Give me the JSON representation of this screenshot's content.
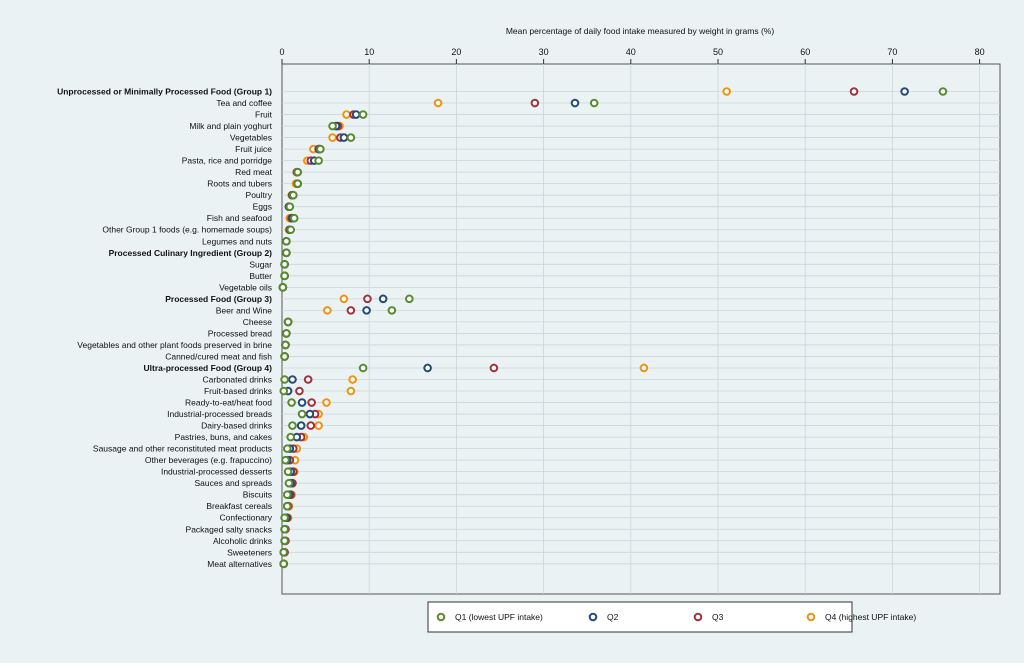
{
  "chart_data": {
    "type": "scatter",
    "xlabel": "Mean percentage of daily food intake measured by weight in grams (%)",
    "xlim": [
      0,
      82
    ],
    "xticks": [
      0,
      10,
      20,
      30,
      40,
      50,
      60,
      70,
      80
    ],
    "xtick_labels": [
      "0",
      "10",
      "20",
      "30",
      "40",
      "50",
      "60",
      "70",
      "80"
    ],
    "grid": true,
    "legend_position": "bottom",
    "colors": {
      "Q1": "#5a8a2e",
      "Q2": "#214a7a",
      "Q3": "#a3303a",
      "Q4": "#f0920f"
    },
    "categories": [
      {
        "label": "Unprocessed or Minimally Processed Food (Group 1)",
        "bold": true
      },
      {
        "label": "Tea and coffee",
        "bold": false
      },
      {
        "label": "Fruit",
        "bold": false
      },
      {
        "label": "Milk and plain yoghurt",
        "bold": false
      },
      {
        "label": "Vegetables",
        "bold": false
      },
      {
        "label": "Fruit juice",
        "bold": false
      },
      {
        "label": "Pasta, rice and porridge",
        "bold": false
      },
      {
        "label": "Red meat",
        "bold": false
      },
      {
        "label": "Roots and tubers",
        "bold": false
      },
      {
        "label": "Poultry",
        "bold": false
      },
      {
        "label": "Eggs",
        "bold": false
      },
      {
        "label": "Fish and seafood",
        "bold": false
      },
      {
        "label": "Other Group 1 foods (e.g. homemade soups)",
        "bold": false
      },
      {
        "label": "Legumes and nuts",
        "bold": false
      },
      {
        "label": "Processed Culinary Ingredient (Group 2)",
        "bold": true
      },
      {
        "label": "Sugar",
        "bold": false
      },
      {
        "label": "Butter",
        "bold": false
      },
      {
        "label": "Vegetable oils",
        "bold": false
      },
      {
        "label": "Processed Food (Group 3)",
        "bold": true
      },
      {
        "label": "Beer and Wine",
        "bold": false
      },
      {
        "label": "Cheese",
        "bold": false
      },
      {
        "label": "Processed bread",
        "bold": false
      },
      {
        "label": "Vegetables and other plant foods preserved in brine",
        "bold": false
      },
      {
        "label": "Canned/cured meat and fish",
        "bold": false
      },
      {
        "label": "Ultra-processed Food (Group 4)",
        "bold": true
      },
      {
        "label": "Carbonated drinks",
        "bold": false
      },
      {
        "label": "Fruit-based drinks",
        "bold": false
      },
      {
        "label": "Ready-to-eat/heat food",
        "bold": false
      },
      {
        "label": "Industrial-processed breads",
        "bold": false
      },
      {
        "label": "Dairy-based drinks",
        "bold": false
      },
      {
        "label": "Pastries, buns, and cakes",
        "bold": false
      },
      {
        "label": "Sausage and other reconstituted meat products",
        "bold": false
      },
      {
        "label": "Other beverages (e.g. frapuccino)",
        "bold": false
      },
      {
        "label": "Industrial-processed desserts",
        "bold": false
      },
      {
        "label": "Sauces and spreads",
        "bold": false
      },
      {
        "label": "Biscuits",
        "bold": false
      },
      {
        "label": "Breakfast cereals",
        "bold": false
      },
      {
        "label": "Confectionary",
        "bold": false
      },
      {
        "label": "Packaged salty snacks",
        "bold": false
      },
      {
        "label": "Alcoholic drinks",
        "bold": false
      },
      {
        "label": "Sweeteners",
        "bold": false
      },
      {
        "label": "Meat alternatives",
        "bold": false
      }
    ],
    "series": [
      {
        "name": "Q1 (lowest UPF intake)",
        "key": "Q1",
        "values": [
          75.8,
          35.8,
          9.3,
          5.8,
          7.9,
          4.4,
          4.2,
          1.8,
          1.8,
          1.3,
          0.9,
          1.4,
          1.0,
          0.5,
          0.5,
          0.3,
          0.3,
          0.1,
          14.6,
          12.6,
          0.7,
          0.5,
          0.4,
          0.3,
          9.3,
          0.3,
          0.2,
          1.1,
          2.3,
          1.2,
          1.0,
          0.6,
          0.4,
          0.7,
          0.8,
          0.6,
          0.6,
          0.3,
          0.3,
          0.3,
          0.2,
          0.2
        ]
      },
      {
        "name": "Q2",
        "key": "Q2",
        "values": [
          71.4,
          33.6,
          8.5,
          6.2,
          7.1,
          4.3,
          3.7,
          1.8,
          1.8,
          1.2,
          0.8,
          1.2,
          0.9,
          0.5,
          0.5,
          0.3,
          0.3,
          0.1,
          11.6,
          9.7,
          0.7,
          0.5,
          0.4,
          0.3,
          16.7,
          1.2,
          0.7,
          2.3,
          3.2,
          2.2,
          1.7,
          0.9,
          0.6,
          1.0,
          1.0,
          0.8,
          0.6,
          0.5,
          0.3,
          0.3,
          0.2,
          0.2
        ]
      },
      {
        "name": "Q3",
        "key": "Q3",
        "values": [
          65.6,
          29.0,
          8.2,
          6.4,
          6.7,
          4.2,
          3.3,
          1.7,
          1.8,
          1.2,
          0.8,
          1.1,
          0.9,
          0.5,
          0.5,
          0.3,
          0.3,
          0.1,
          9.8,
          7.9,
          0.7,
          0.5,
          0.4,
          0.3,
          24.3,
          3.0,
          2.0,
          3.4,
          3.8,
          3.3,
          2.2,
          1.3,
          0.9,
          1.3,
          1.2,
          1.0,
          0.7,
          0.6,
          0.4,
          0.4,
          0.3,
          0.2
        ]
      },
      {
        "name": "Q4 (highest UPF intake)",
        "key": "Q4",
        "values": [
          51.0,
          17.9,
          7.4,
          6.6,
          5.8,
          3.6,
          2.9,
          1.7,
          1.6,
          1.1,
          0.8,
          0.9,
          0.8,
          0.5,
          0.5,
          0.3,
          0.3,
          0.1,
          7.1,
          5.2,
          0.7,
          0.5,
          0.4,
          0.3,
          41.5,
          8.1,
          7.9,
          5.1,
          4.2,
          4.2,
          2.5,
          1.7,
          1.5,
          1.4,
          1.2,
          1.1,
          0.8,
          0.7,
          0.4,
          0.4,
          0.3,
          0.2
        ]
      }
    ]
  }
}
